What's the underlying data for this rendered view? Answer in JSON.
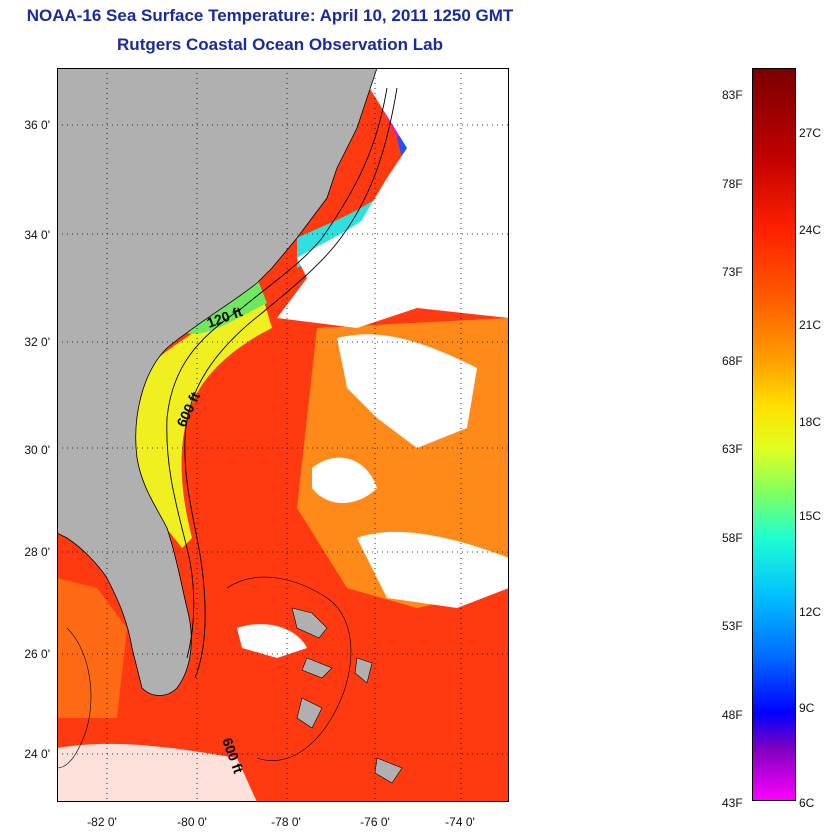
{
  "header": {
    "title": "NOAA-16 Sea Surface Temperature:  April 10, 2011 1250 GMT",
    "subtitle": "Rutgers Coastal Ocean Observation Lab"
  },
  "map": {
    "region": "US Southeast coast / Bahamas",
    "y_ticks": [
      "36 0'",
      "34 0'",
      "32 0'",
      "30 0'",
      "28 0'",
      "26 0'",
      "24 0'"
    ],
    "x_ticks": [
      "-82 0'",
      "-80 0'",
      "-78 0'",
      "-76 0'",
      "-74 0'"
    ],
    "lat_range": [
      23.1,
      37.1
    ],
    "lon_range": [
      -83,
      -72.8
    ],
    "contour_labels": [
      "120 ft",
      "600 ft",
      "600 ft"
    ],
    "colors": {
      "land": "#b0b0b0",
      "cloud": "#ffffff",
      "border": "#000000"
    }
  },
  "colorbar": {
    "fahrenheit_labels": [
      "83F",
      "78F",
      "73F",
      "68F",
      "63F",
      "58F",
      "53F",
      "48F",
      "43F"
    ],
    "celsius_labels": [
      "27C",
      "24C",
      "21C",
      "18C",
      "15C",
      "12C",
      "9C",
      "6C"
    ],
    "gradient_stops": [
      "#7a0000",
      "#c00000",
      "#ff2000",
      "#ff6000",
      "#ffa000",
      "#ffe000",
      "#e0ff20",
      "#80ff60",
      "#20ffd0",
      "#00c0ff",
      "#0070ff",
      "#0000ff",
      "#8000c0",
      "#ff00ff"
    ]
  }
}
